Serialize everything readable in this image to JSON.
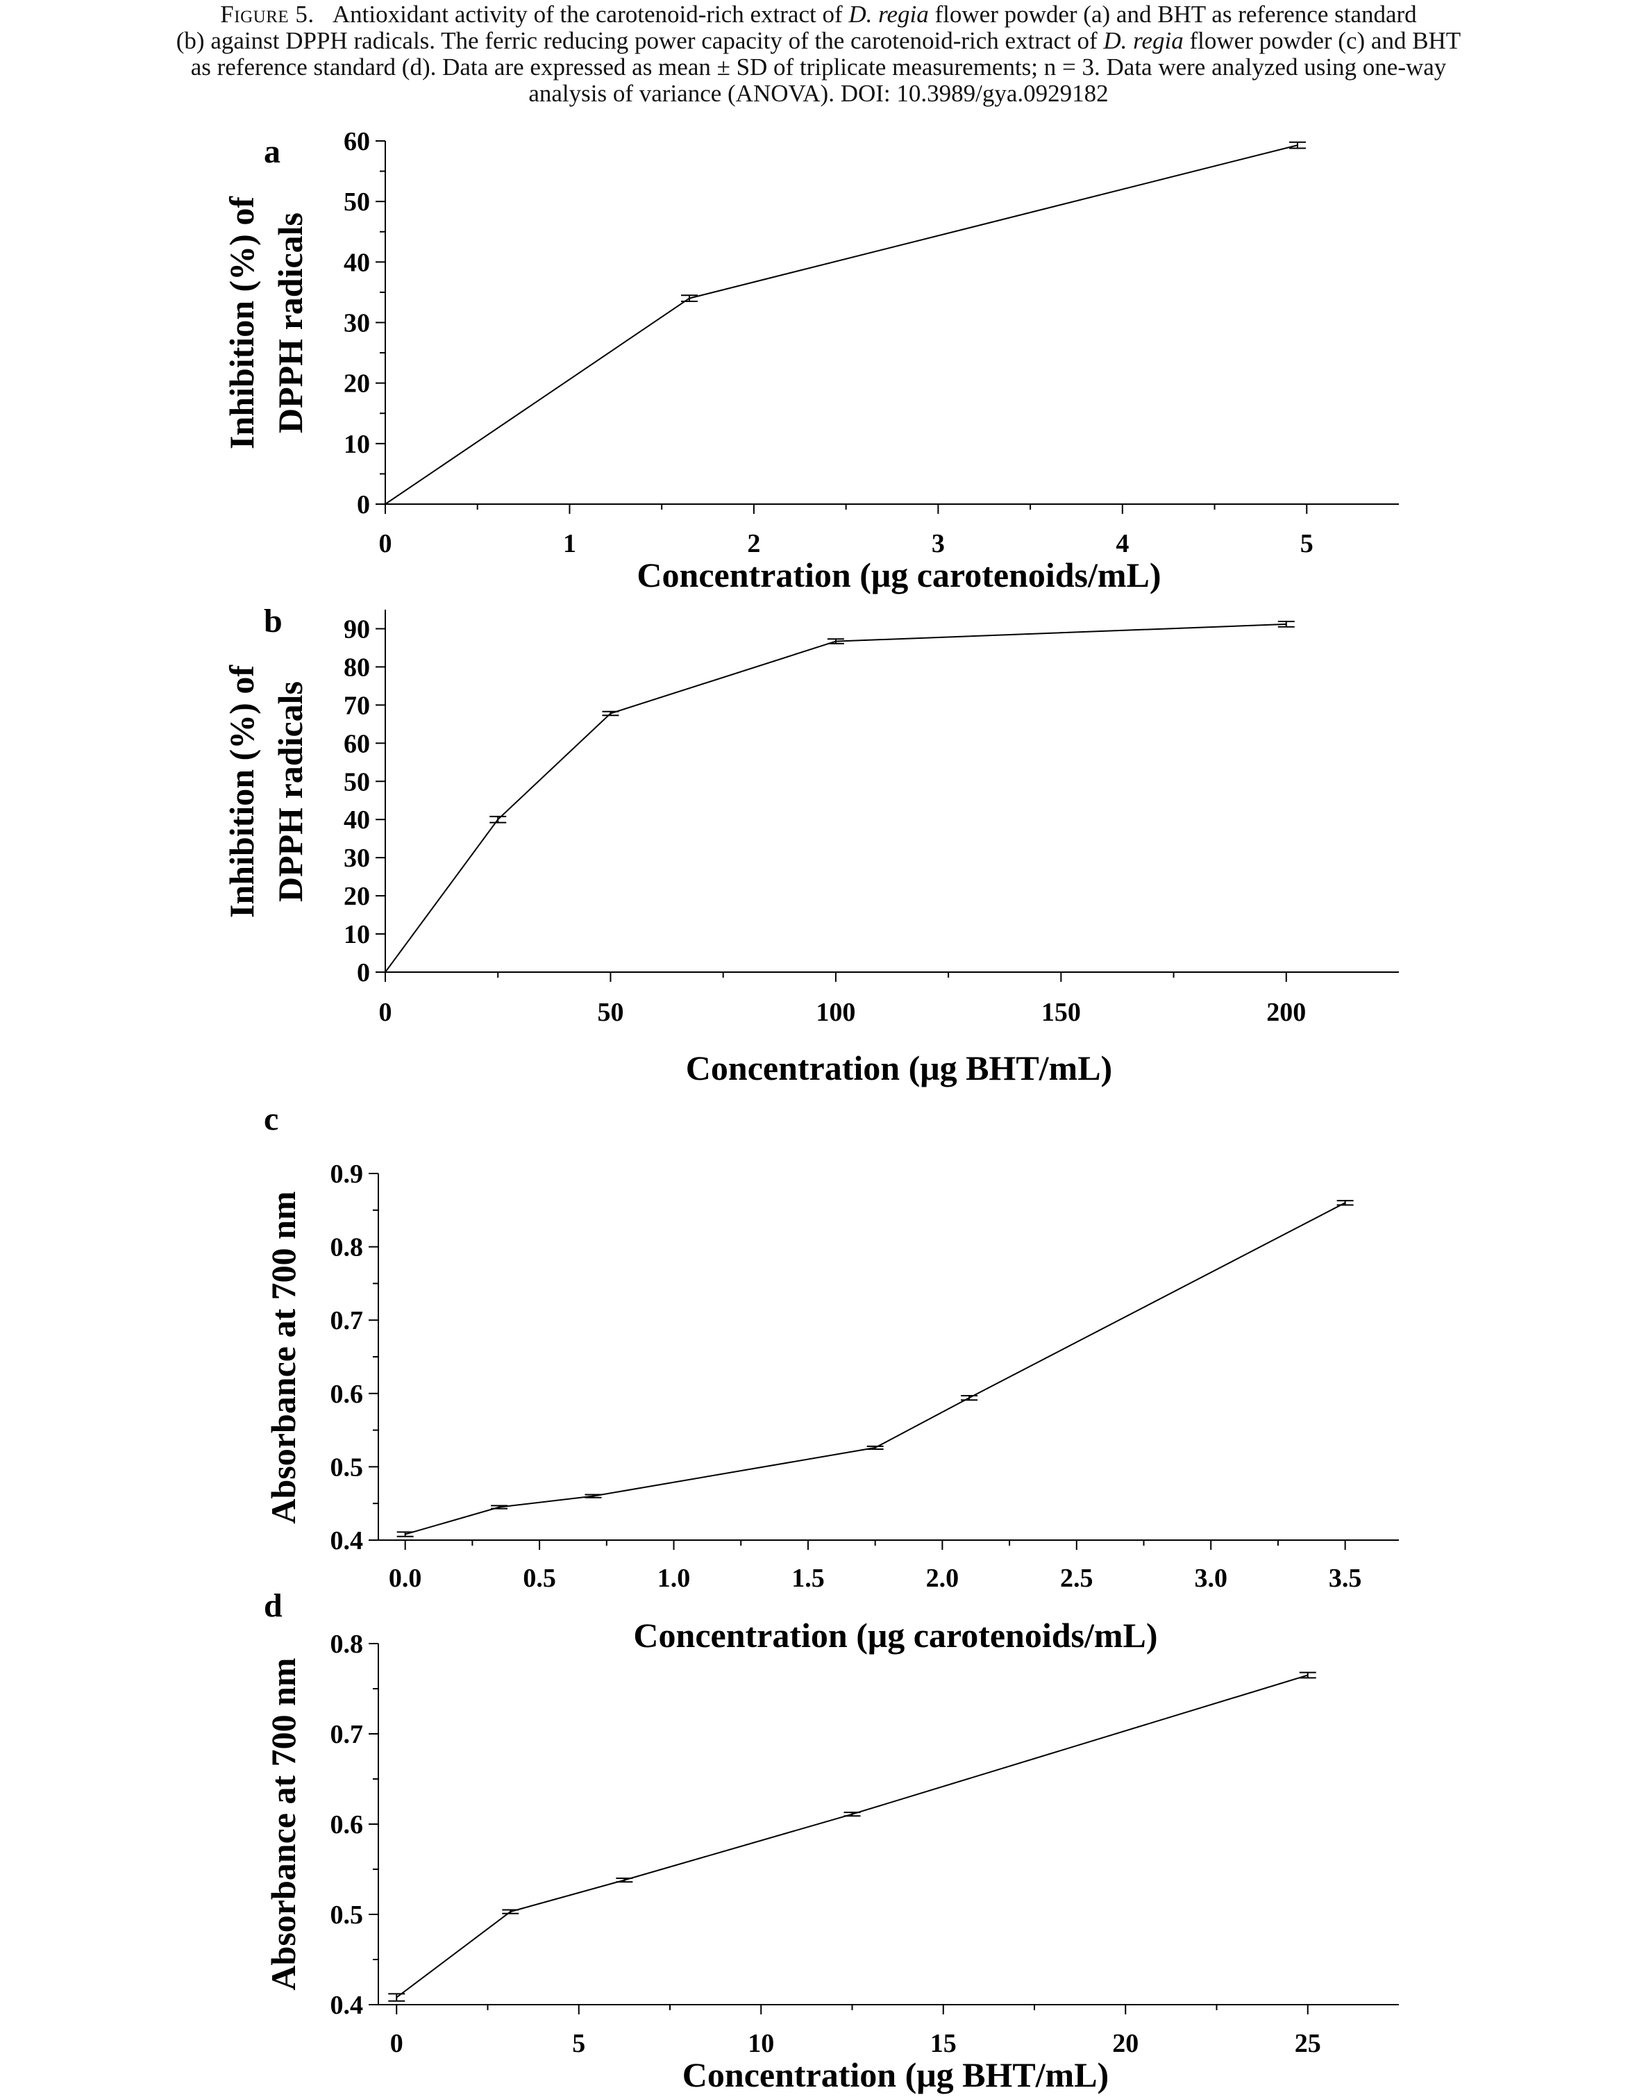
{
  "caption": {
    "figure_label": "Figure 5.",
    "line1_pre": "Antioxidant activity of the carotenoid-rich extract of ",
    "line1_species": "D. regia",
    "line1_post": " flower powder (a) and BHT as reference standard",
    "line2_pre": "(b) against DPPH radicals. The ferric reducing power capacity of the carotenoid-rich extract of ",
    "line2_species": "D. regia",
    "line2_post": " flower powder (c) and BHT",
    "line3": "as reference standard (d). Data are expressed as mean ± SD of triplicate measurements; n = 3. Data were analyzed using one-way",
    "line4": "analysis of variance (ANOVA). DOI: 10.3989/gya.0929182"
  },
  "chart_data": [
    {
      "id": "a",
      "panel_label": "a",
      "type": "line",
      "xlabel": "Concentration (μg carotenoids/mL)",
      "ylabel_lines": [
        "Inhibition (%) of",
        "DPPH radicals"
      ],
      "xlim": [
        0,
        5.5
      ],
      "ylim": [
        0,
        60
      ],
      "xticks": [
        0,
        1,
        2,
        3,
        4,
        5
      ],
      "xticklabels": [
        "0",
        "1",
        "2",
        "3",
        "4",
        "5"
      ],
      "yticks": [
        0,
        10,
        20,
        30,
        40,
        50,
        60
      ],
      "yticklabels": [
        "0",
        "10",
        "20",
        "30",
        "40",
        "50",
        "60"
      ],
      "x": [
        0,
        1.65,
        4.95
      ],
      "y": [
        0,
        34.0,
        59.3
      ],
      "error": [
        0,
        0.5,
        0.5
      ],
      "grid": false
    },
    {
      "id": "b",
      "panel_label": "b",
      "type": "line",
      "xlabel": "Concentration (μg BHT/mL)",
      "ylabel_lines": [
        "Inhibition (%) of",
        "DPPH radicals"
      ],
      "xlim": [
        0,
        225
      ],
      "ylim": [
        0,
        95
      ],
      "xticks": [
        0,
        50,
        100,
        150,
        200
      ],
      "xticklabels": [
        "0",
        "50",
        "100",
        "150",
        "200"
      ],
      "yticks": [
        0,
        10,
        20,
        30,
        40,
        50,
        60,
        70,
        80,
        90
      ],
      "yticklabels": [
        "0",
        "10",
        "20",
        "30",
        "40",
        "50",
        "60",
        "70",
        "80",
        "90"
      ],
      "x": [
        0,
        25,
        50,
        100,
        200
      ],
      "y": [
        0,
        40.0,
        67.8,
        86.7,
        91.2
      ],
      "error": [
        0,
        0.8,
        0.5,
        0.6,
        0.7
      ],
      "grid": false
    },
    {
      "id": "c",
      "panel_label": "c",
      "type": "line",
      "xlabel": "Concentration (μg carotenoids/mL)",
      "ylabel_lines": [
        "Absorbance at 700 nm"
      ],
      "xlim": [
        -0.1,
        3.7
      ],
      "ylim": [
        0.4,
        0.9
      ],
      "xticks": [
        0.0,
        0.5,
        1.0,
        1.5,
        2.0,
        2.5,
        3.0,
        3.5
      ],
      "xticklabels": [
        "0.0",
        "0.5",
        "1.0",
        "1.5",
        "2.0",
        "2.5",
        "3.0",
        "3.5"
      ],
      "yticks": [
        0.4,
        0.5,
        0.6,
        0.7,
        0.8,
        0.9
      ],
      "yticklabels": [
        "0.4",
        "0.5",
        "0.6",
        "0.7",
        "0.8",
        "0.9"
      ],
      "x": [
        0,
        0.35,
        0.7,
        1.75,
        2.1,
        3.5
      ],
      "y": [
        0.408,
        0.445,
        0.46,
        0.526,
        0.594,
        0.86
      ],
      "error": [
        0.003,
        0.002,
        0.002,
        0.002,
        0.003,
        0.003
      ],
      "grid": false
    },
    {
      "id": "d",
      "panel_label": "d",
      "type": "line",
      "xlabel": "Concentration (μg BHT/mL)",
      "ylabel_lines": [
        "Absorbance at 700 nm"
      ],
      "xlim": [
        -0.5,
        27.5
      ],
      "ylim": [
        0.4,
        0.8
      ],
      "xticks": [
        0,
        5,
        10,
        15,
        20,
        25
      ],
      "xticklabels": [
        "0",
        "5",
        "10",
        "15",
        "20",
        "25"
      ],
      "yticks": [
        0.4,
        0.5,
        0.6,
        0.7,
        0.8
      ],
      "yticklabels": [
        "0.4",
        "0.5",
        "0.6",
        "0.7",
        "0.8"
      ],
      "x": [
        0,
        3.125,
        6.25,
        12.5,
        25
      ],
      "y": [
        0.408,
        0.503,
        0.538,
        0.611,
        0.765
      ],
      "error": [
        0.004,
        0.002,
        0.002,
        0.002,
        0.003
      ],
      "grid": false
    }
  ]
}
